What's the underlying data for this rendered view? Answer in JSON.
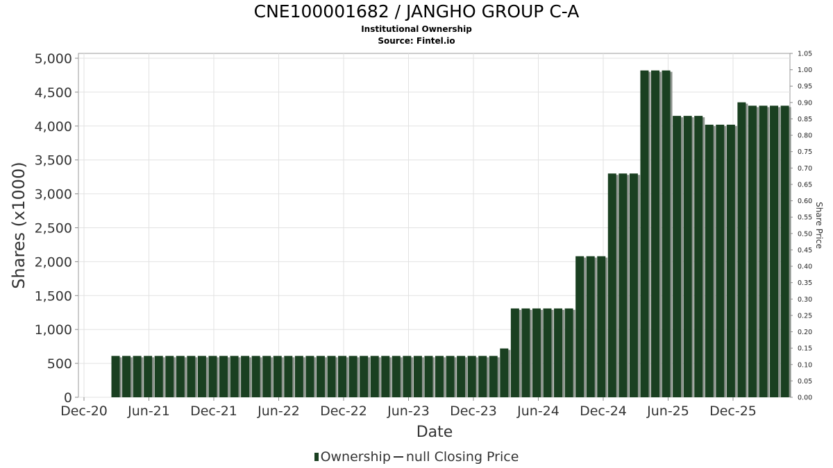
{
  "chart_data": {
    "type": "bar",
    "title": "CNE100001682 / JANGHO GROUP C-A",
    "subtitle1": "Institutional Ownership",
    "subtitle2": "Source: Fintel.io",
    "xlabel": "Date",
    "ylabel": "Shares (x1000)",
    "y2label": "Share Price",
    "ylim": [
      0,
      5000
    ],
    "y2lim": [
      0,
      1.05
    ],
    "y_ticks": [
      0,
      500,
      1000,
      1500,
      2000,
      2500,
      3000,
      3500,
      4000,
      4500,
      5000
    ],
    "y_tick_labels": [
      "0",
      "500",
      "1,000",
      "1,500",
      "2,000",
      "2,500",
      "3,000",
      "3,500",
      "4,000",
      "4,500",
      "5,000"
    ],
    "y2_tick_labels": [
      "0.00",
      "0.05",
      "0.10",
      "0.15",
      "0.20",
      "0.25",
      "0.30",
      "0.35",
      "0.40",
      "0.45",
      "0.50",
      "0.55",
      "0.60",
      "0.65",
      "0.70",
      "0.75",
      "0.80",
      "0.85",
      "0.90",
      "0.95",
      "1.00",
      "1.05"
    ],
    "x_tick_labels": [
      "Dec-20",
      "Jun-21",
      "Dec-21",
      "Jun-22",
      "Dec-22",
      "Jun-23",
      "Dec-23",
      "Jun-24",
      "Dec-24",
      "Jun-25",
      "Dec-25"
    ],
    "series": [
      {
        "name": "Ownership",
        "color": "#1a4021",
        "values": [
          610,
          610,
          610,
          610,
          610,
          610,
          610,
          610,
          610,
          610,
          610,
          610,
          610,
          610,
          610,
          610,
          610,
          610,
          610,
          610,
          610,
          610,
          610,
          610,
          610,
          610,
          610,
          610,
          610,
          610,
          610,
          610,
          610,
          610,
          610,
          610,
          720,
          1310,
          1310,
          1310,
          1310,
          1310,
          1310,
          2080,
          2080,
          2080,
          3300,
          3300,
          3300,
          4820,
          4820,
          4820,
          4150,
          4150,
          4150,
          4020,
          4020,
          4020,
          4350,
          4300,
          4300,
          4300,
          4300
        ]
      }
    ],
    "legend": {
      "ownership": "Ownership",
      "price": "null Closing Price"
    }
  }
}
